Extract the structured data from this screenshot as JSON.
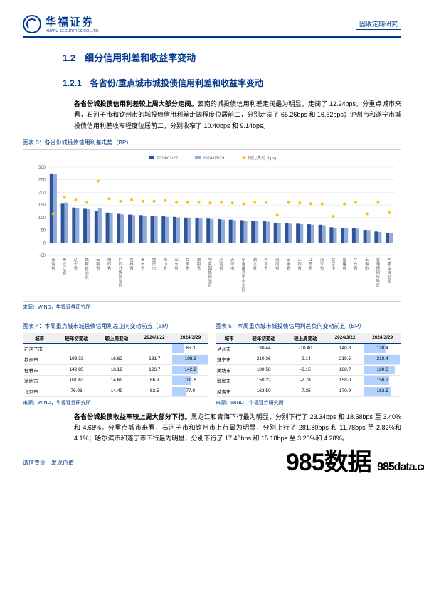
{
  "header": {
    "company_cn": "华福证券",
    "company_en": "HUAFU SECURITIES CO.,LTD.",
    "doc_type": "固收定期研究"
  },
  "sec12": {
    "num": "1.2",
    "title": "细分信用利差和收益率变动"
  },
  "sec121": {
    "num": "1.2.1",
    "title": "各省份/重点城市城投债信用利差和收益率变动"
  },
  "para1": {
    "bold": "各省份城投债信用利差较上周大部分走阔。",
    "rest": "云南的城投债信用利差走阔最为明显，走阔了 12.24bps。分重点城市来看，石河子市和钦州市的城投债信用利差走阔程度位居前二，分别走阔了 65.26bps 和 16.62bps；泸州市和遂宁市城投债信用利差收窄程度位居前二，分别收窄了 10.40bps 和 9.14bps。"
  },
  "chart3": {
    "title": "图表 3：各省份城投债信用利差走势（BP）",
    "source": "来源：WIND，华福证券研究所",
    "legend": [
      "2024/03/22",
      "2024/03/29",
      "同比变动 (bps)"
    ],
    "colors": {
      "bar1": "#2f5597",
      "bar2": "#8faadc",
      "dot": "#ffc000",
      "grid": "#e0e0e0",
      "axis": "#bfbfbf",
      "bg": "#ffffff",
      "text": "#595959"
    },
    "ylim": [
      -50,
      300
    ],
    "ytick_step": 50,
    "categories": [
      "青海省",
      "黑龙江省",
      "辽宁省",
      "西藏自治区",
      "云南省",
      "陕西省",
      "广西壮族自治区",
      "吉林省",
      "贵州省",
      "重庆市",
      "四川省",
      "山东省",
      "甘肃省",
      "湖南省",
      "宁夏回族自治区",
      "河南省",
      "天津市",
      "新疆维吾尔自治区",
      "湖北省",
      "河北省",
      "海南省",
      "安徽省",
      "江西省",
      "江苏省",
      "浙江省",
      "北京市",
      "福建省",
      "广东省",
      "上海市",
      "香港特别行政区",
      "内蒙古自治区"
    ],
    "bar1": [
      275,
      155,
      140,
      135,
      125,
      120,
      115,
      112,
      110,
      108,
      105,
      103,
      100,
      98,
      96,
      94,
      92,
      90,
      88,
      86,
      80,
      78,
      76,
      74,
      72,
      62,
      60,
      58,
      50,
      45,
      40
    ],
    "bar2": [
      272,
      160,
      138,
      133,
      137,
      118,
      113,
      110,
      108,
      106,
      103,
      101,
      98,
      96,
      94,
      92,
      90,
      88,
      86,
      84,
      78,
      76,
      74,
      72,
      70,
      60,
      58,
      56,
      48,
      43,
      38
    ],
    "dots": [
      115,
      180,
      170,
      160,
      245,
      175,
      165,
      170,
      165,
      165,
      168,
      160,
      160,
      160,
      158,
      160,
      158,
      155,
      160,
      160,
      110,
      160,
      158,
      155,
      155,
      105,
      155,
      160,
      115,
      160,
      120
    ]
  },
  "tbl4": {
    "title": "图表 4：本周重点城市城投债信用利差正向变动前五（BP）",
    "source": "来源：WIND，华福证券研究所",
    "cols": [
      "城市",
      "较年初变动",
      "较上周变动",
      "2024/3/22",
      "2024/3/29"
    ],
    "rows": [
      [
        "石河子市",
        "",
        "",
        "",
        "65.3"
      ],
      [
        "钦州市",
        "198.33",
        "16.62",
        "181.7",
        "198.3"
      ],
      [
        "桂林市",
        "142.85",
        "16.19",
        "126.7",
        "142.9"
      ],
      [
        "潍坊市",
        "101.63",
        "14.69",
        "86.9",
        "101.6"
      ],
      [
        "北京市",
        "76.96",
        "14.49",
        "62.5",
        "77.0"
      ]
    ],
    "bar_color": "#8faadc",
    "bar_max": 200
  },
  "tbl5": {
    "title": "图表 5：本周重点城市城投债信用利差负向变动前五（BP）",
    "cols": [
      "城市",
      "较年初变动",
      "较上周变动",
      "2024/3/22",
      "2024/3/29"
    ],
    "rows": [
      [
        "泸州市",
        "130.44",
        "-10.40",
        "140.8",
        "130.4"
      ],
      [
        "遂宁市",
        "210.36",
        "-9.14",
        "219.5",
        "210.4"
      ],
      [
        "潍坊市",
        "180.58",
        "-8.15",
        "188.7",
        "180.6"
      ],
      [
        "邯郸市",
        "150.22",
        "-7.78",
        "158.0",
        "150.2"
      ],
      [
        "威海市",
        "163.50",
        "-7.35",
        "170.9",
        "163.5"
      ]
    ],
    "bar_color": "#8faadc",
    "bar_max": 220
  },
  "para2": {
    "bold": "各省份城投债收益率较上周大部分下行。",
    "rest": "黑龙江和青海下行最为明显，分别下行了 23.34bps 和 18.58bps 至 3.40%和 4.68%。分重点城市来看，石河子市和钦州市上行最为明显，分别上行了 281.80bps 和 11.78bps 至 2.82%和 4.1%；哈尔滨市和遂宁市下行最为明显，分别下行了 17.48bps 和 15.18bps 至 3.20%和 4.28%。"
  },
  "footer": {
    "left": "诚信专业　发现价值"
  },
  "watermark": {
    "main": "985数据",
    "sub": "985data.com"
  }
}
